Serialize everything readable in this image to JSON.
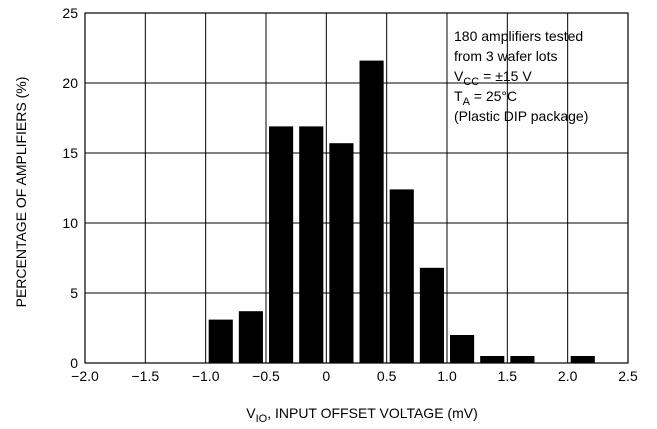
{
  "chart_data": {
    "type": "bar",
    "xlabel": {
      "main": "V",
      "sub": "IO",
      "rest": ", INPUT OFFSET VOLTAGE (mV)"
    },
    "ylabel": "PERCENTAGE OF AMPLIFIERS (%)",
    "xlim": [
      -2.0,
      2.5
    ],
    "ylim": [
      0,
      25
    ],
    "grid": true,
    "x_ticks": [
      {
        "value": -2.0,
        "label": "−2.0"
      },
      {
        "value": -1.5,
        "label": "−1.5"
      },
      {
        "value": -1.0,
        "label": "−1.0"
      },
      {
        "value": -0.5,
        "label": "−0.5"
      },
      {
        "value": 0,
        "label": "0"
      },
      {
        "value": 0.5,
        "label": "0.5"
      },
      {
        "value": 1.0,
        "label": "1.0"
      },
      {
        "value": 1.5,
        "label": "1.5"
      },
      {
        "value": 2.0,
        "label": "2.0"
      },
      {
        "value": 2.5,
        "label": "2.5"
      }
    ],
    "y_ticks": [
      {
        "value": 0,
        "label": "0"
      },
      {
        "value": 5,
        "label": "5"
      },
      {
        "value": 10,
        "label": "10"
      },
      {
        "value": 15,
        "label": "15"
      },
      {
        "value": 20,
        "label": "20"
      },
      {
        "value": 25,
        "label": "25"
      }
    ],
    "bin_width": 0.25,
    "bins": [
      {
        "x": -0.875,
        "value": 3.1
      },
      {
        "x": -0.625,
        "value": 3.7
      },
      {
        "x": -0.375,
        "value": 16.9
      },
      {
        "x": -0.125,
        "value": 16.9
      },
      {
        "x": 0.125,
        "value": 15.7
      },
      {
        "x": 0.375,
        "value": 21.6
      },
      {
        "x": 0.625,
        "value": 12.4
      },
      {
        "x": 0.875,
        "value": 6.8
      },
      {
        "x": 1.125,
        "value": 2.0
      },
      {
        "x": 1.375,
        "value": 0.5
      },
      {
        "x": 1.625,
        "value": 0.5
      },
      {
        "x": 2.125,
        "value": 0.5
      }
    ],
    "annotation": [
      {
        "main": "180 amplifiers tested",
        "sub": "",
        "rest": ""
      },
      {
        "main": "from 3 wafer lots",
        "sub": "",
        "rest": ""
      },
      {
        "main": "V",
        "sub": "CC",
        "rest": " = ±15 V"
      },
      {
        "main": "T",
        "sub": "A",
        "rest": " = 25°C"
      },
      {
        "main": "(Plastic DIP package)",
        "sub": "",
        "rest": ""
      }
    ]
  },
  "colors": {
    "bar": "#000000",
    "grid": "#000000",
    "background": "#ffffff"
  }
}
